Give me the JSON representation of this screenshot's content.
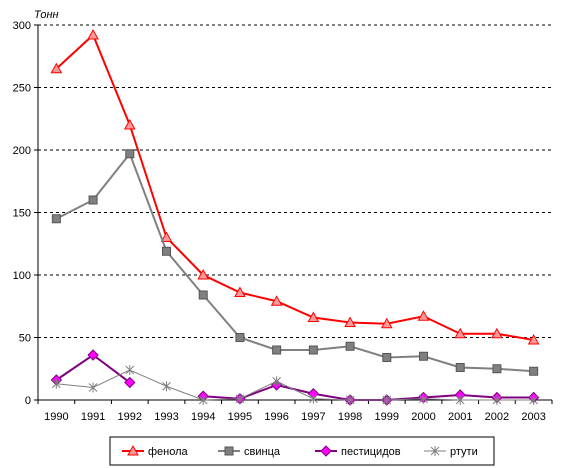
{
  "chart_data": {
    "type": "line",
    "ylabel": "Тонн",
    "ylim": [
      0,
      300
    ],
    "y_ticks": [
      "0",
      "50",
      "100",
      "150",
      "200",
      "250",
      "300"
    ],
    "grid": "horizontal dashed",
    "legend_position": "bottom",
    "categories": [
      "1990",
      "1991",
      "1992",
      "1993",
      "1994",
      "1995",
      "1996",
      "1997",
      "1998",
      "1999",
      "2000",
      "2001",
      "2002",
      "2003"
    ],
    "series": [
      {
        "name": "фенола",
        "color": "#ff0000",
        "marker": "triangle",
        "values": [
          265,
          292,
          220,
          130,
          100,
          86,
          79,
          66,
          62,
          61,
          67,
          53,
          53,
          48
        ]
      },
      {
        "name": "свинца",
        "color": "#808080",
        "marker": "square",
        "values": [
          145,
          160,
          197,
          119,
          84,
          50,
          40,
          40,
          43,
          34,
          35,
          26,
          25,
          23
        ]
      },
      {
        "name": "пестицидов",
        "color": "#800080",
        "marker_color": "#ff00ff",
        "marker": "diamond",
        "values": [
          16,
          36,
          14,
          null,
          3,
          1,
          12,
          5,
          0,
          0,
          2,
          4,
          2,
          2
        ]
      },
      {
        "name": "ртути",
        "color": "#808080",
        "marker": "star",
        "values": [
          13,
          10,
          24,
          11,
          0,
          1,
          15,
          1,
          0,
          0,
          1,
          0,
          0,
          0
        ]
      }
    ]
  }
}
